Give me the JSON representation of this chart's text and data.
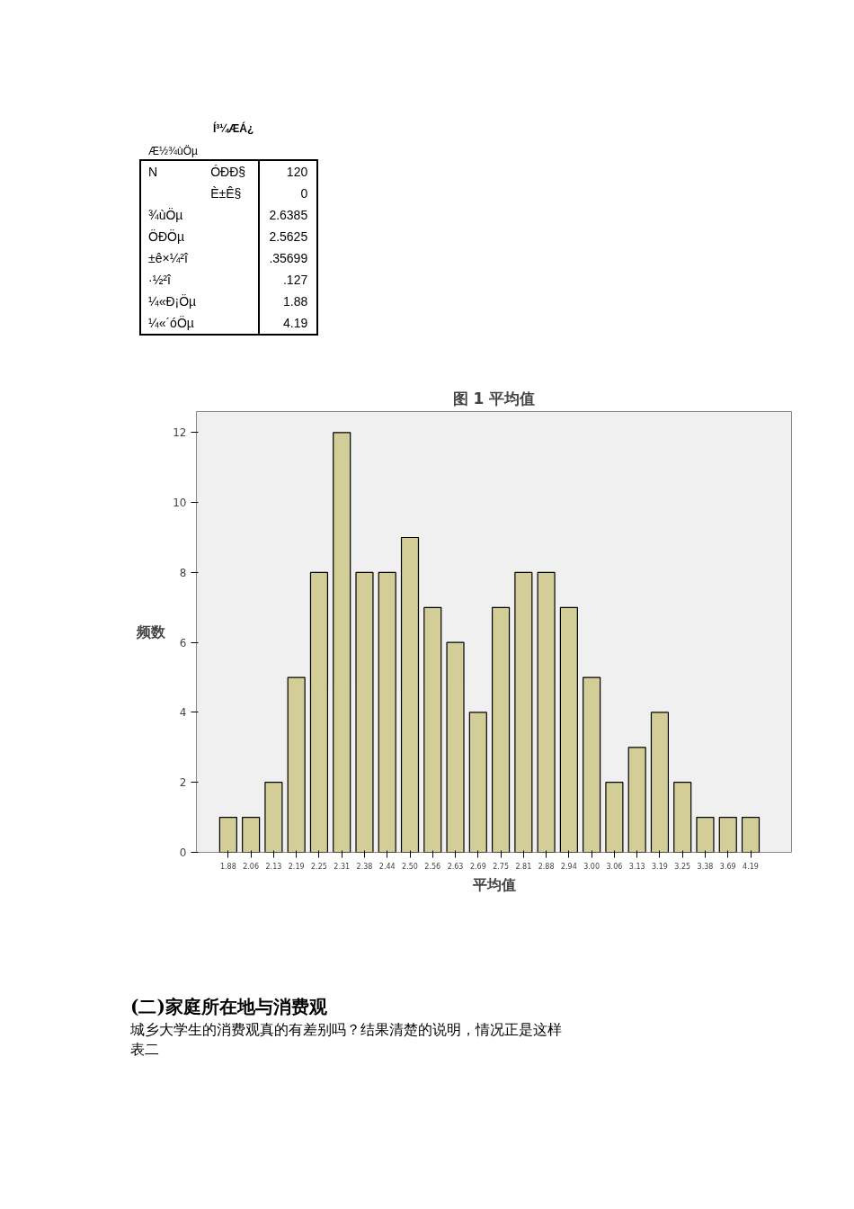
{
  "chart_data": {
    "type": "bar",
    "title": "图 1 平均值",
    "xlabel": "平均值",
    "ylabel": "频数",
    "categories": [
      "1.88",
      "2.06",
      "2.13",
      "2.19",
      "2.25",
      "2.31",
      "2.38",
      "2.44",
      "2.50",
      "2.56",
      "2.63",
      "2.69",
      "2.75",
      "2.81",
      "2.88",
      "2.94",
      "3.00",
      "3.06",
      "3.13",
      "3.19",
      "3.25",
      "3.38",
      "3.69",
      "4.19"
    ],
    "values": [
      1,
      1,
      2,
      5,
      8,
      12,
      8,
      8,
      9,
      7,
      6,
      4,
      7,
      8,
      8,
      7,
      5,
      2,
      3,
      4,
      2,
      1,
      1,
      1
    ],
    "color": "#d3ce97",
    "ylim": [
      0,
      12.6
    ],
    "yticks": [
      0,
      2,
      4,
      6,
      8,
      10,
      12
    ],
    "grid": false,
    "annotations": [
      "Í³¼ÆÁ¿",
      "Æ½¾ùÖµ",
      "N",
      "ÓÐÐ§",
      "120",
      "È±Ê§",
      "0",
      "¾ùÖµ",
      "2.6385",
      "ÖÐÖµ",
      "2.5625",
      "±ê×¼²î",
      ".35699",
      "·½²î",
      ".127",
      "¼«Ð¡Öµ",
      "1.88",
      "¼«´óÖµ",
      "4.19",
      "(二)家庭所在地与消费观",
      "城乡大学生的消费观真的有差别吗？结果清楚的说明，情况正是这样",
      "表二"
    ]
  }
}
